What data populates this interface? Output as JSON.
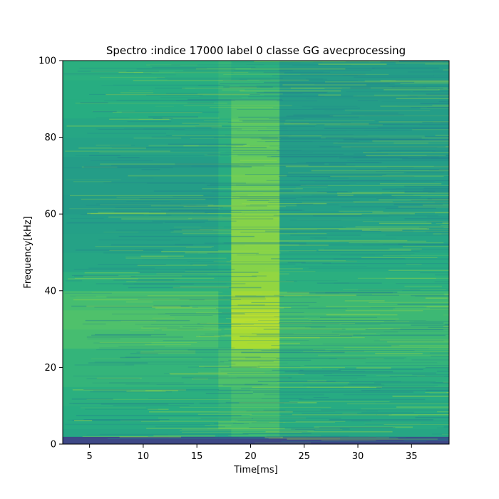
{
  "chart_data": {
    "type": "heatmap",
    "title": "Spectro :indice 17000 label 0 classe GG avecprocessing",
    "xlabel": "Time[ms]",
    "ylabel": "Frequency[kHz]",
    "xlim": [
      2.5,
      38.5
    ],
    "ylim": [
      0,
      100
    ],
    "x_ticks": [
      5,
      10,
      15,
      20,
      25,
      30,
      35
    ],
    "x_tick_labels": [
      "5",
      "10",
      "15",
      "20",
      "25",
      "30",
      "35"
    ],
    "y_ticks": [
      0,
      20,
      40,
      60,
      80,
      100
    ],
    "y_tick_labels": [
      "0",
      "20",
      "40",
      "60",
      "80",
      "100"
    ],
    "colormap": "viridis",
    "grid": false,
    "legend": "none",
    "time_segments": [
      {
        "start": 2.5,
        "end": 17.0
      },
      {
        "start": 17.0,
        "end": 18.2
      },
      {
        "start": 18.2,
        "end": 22.7
      },
      {
        "start": 22.7,
        "end": 38.5
      }
    ],
    "frequency_bins_khz": [
      0,
      2,
      4,
      6,
      10,
      15,
      20,
      25,
      30,
      35,
      40,
      45,
      50,
      55,
      60,
      65,
      70,
      75,
      80,
      85,
      90,
      95,
      100
    ],
    "intensity_normalized": [
      [
        0.22,
        0.6,
        0.62,
        0.63,
        0.64,
        0.66,
        0.66,
        0.7,
        0.72,
        0.7,
        0.64,
        0.6,
        0.58,
        0.57,
        0.55,
        0.56,
        0.56,
        0.58,
        0.6,
        0.63,
        0.63,
        0.64
      ],
      [
        0.22,
        0.6,
        0.7,
        0.64,
        0.66,
        0.72,
        0.7,
        0.66,
        0.64,
        0.64,
        0.64,
        0.62,
        0.62,
        0.62,
        0.61,
        0.62,
        0.62,
        0.64,
        0.64,
        0.66,
        0.66,
        0.66
      ],
      [
        0.22,
        0.66,
        0.7,
        0.68,
        0.7,
        0.72,
        0.8,
        0.88,
        0.9,
        0.87,
        0.84,
        0.82,
        0.82,
        0.82,
        0.8,
        0.78,
        0.77,
        0.76,
        0.74,
        0.72,
        0.66,
        0.64
      ],
      [
        0.22,
        0.6,
        0.62,
        0.62,
        0.62,
        0.64,
        0.66,
        0.68,
        0.68,
        0.68,
        0.64,
        0.62,
        0.6,
        0.58,
        0.57,
        0.57,
        0.56,
        0.56,
        0.56,
        0.56,
        0.56,
        0.56
      ]
    ]
  }
}
